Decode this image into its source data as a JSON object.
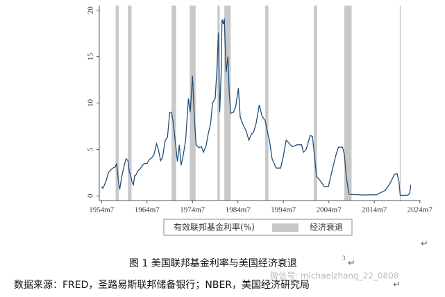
{
  "chart_data": {
    "type": "line",
    "x": [
      1954.5,
      1954.8,
      1955.5,
      1956.0,
      1956.5,
      1957.0,
      1957.5,
      1957.8,
      1958.0,
      1958.3,
      1958.5,
      1958.9,
      1959.5,
      1959.9,
      1960.3,
      1960.6,
      1961.0,
      1961.2,
      1961.5,
      1961.8,
      1962.0,
      1962.5,
      1963.0,
      1963.5,
      1964.0,
      1964.5,
      1965.0,
      1965.5,
      1966.0,
      1966.6,
      1967.0,
      1967.5,
      1967.9,
      1968.5,
      1969.0,
      1969.5,
      1969.9,
      1970.3,
      1970.9,
      1971.2,
      1971.6,
      1972.0,
      1972.5,
      1973.0,
      1973.6,
      1974.0,
      1974.5,
      1974.9,
      1975.3,
      1975.9,
      1976.5,
      1976.9,
      1977.5,
      1977.9,
      1978.5,
      1978.9,
      1979.5,
      1979.9,
      1980.2,
      1980.5,
      1980.8,
      1981.0,
      1981.3,
      1981.5,
      1981.9,
      1982.3,
      1982.6,
      1982.9,
      1983.5,
      1984.0,
      1984.6,
      1985.0,
      1985.5,
      1986.3,
      1986.9,
      1987.5,
      1987.9,
      1988.5,
      1989.2,
      1989.8,
      1990.5,
      1991.0,
      1991.5,
      1992.0,
      1992.9,
      1993.9,
      1994.5,
      1995.1,
      1995.9,
      1996.5,
      1997.5,
      1998.5,
      1998.9,
      1999.5,
      2000.4,
      2000.9,
      2001.3,
      2001.8,
      2002.5,
      2003.5,
      2004.4,
      2005.0,
      2006.0,
      2006.6,
      2007.5,
      2007.9,
      2008.3,
      2008.9,
      2009.5,
      2012.0,
      2015.0,
      2015.9,
      2016.9,
      2017.9,
      2018.9,
      2019.5,
      2019.9,
      2020.2,
      2021.9,
      2022.3,
      2022.5
    ],
    "series": [
      {
        "name": "有效联邦基金利率(%)",
        "color": "#1f4e79",
        "values": [
          1.0,
          0.8,
          1.6,
          2.5,
          2.8,
          3.0,
          3.1,
          3.5,
          2.7,
          1.2,
          0.7,
          2.0,
          3.3,
          4.0,
          3.8,
          2.6,
          2.0,
          1.5,
          1.2,
          2.2,
          2.2,
          2.7,
          2.9,
          3.3,
          3.5,
          3.5,
          3.9,
          4.1,
          4.4,
          5.6,
          5.0,
          3.8,
          4.1,
          6.0,
          6.3,
          9.0,
          9.0,
          7.8,
          5.0,
          3.7,
          5.5,
          3.3,
          4.5,
          6.0,
          10.5,
          9.0,
          12.9,
          8.5,
          5.5,
          5.2,
          5.3,
          4.7,
          5.4,
          6.5,
          7.8,
          10.0,
          10.5,
          13.8,
          17.6,
          9.0,
          13.0,
          19.0,
          18.5,
          19.1,
          13.3,
          15.0,
          11.0,
          8.9,
          9.0,
          9.6,
          11.6,
          8.5,
          7.8,
          7.0,
          6.0,
          6.7,
          6.8,
          7.8,
          9.8,
          8.6,
          8.1,
          6.9,
          5.8,
          4.0,
          3.0,
          3.0,
          4.3,
          6.0,
          5.6,
          5.3,
          5.5,
          5.5,
          4.7,
          5.0,
          6.5,
          6.4,
          4.5,
          2.1,
          1.7,
          1.0,
          1.0,
          2.3,
          4.3,
          5.25,
          5.25,
          4.5,
          2.2,
          0.2,
          0.15,
          0.1,
          0.12,
          0.35,
          0.6,
          1.3,
          2.3,
          2.4,
          1.6,
          0.05,
          0.08,
          0.3,
          1.2
        ]
      }
    ],
    "recessions": {
      "name": "经济衰退",
      "color": "#c8c8c8",
      "periods": [
        [
          1957.6,
          1958.3
        ],
        [
          1960.3,
          1961.1
        ],
        [
          1969.9,
          1970.9
        ],
        [
          1973.9,
          1975.2
        ],
        [
          1980.0,
          1980.5
        ],
        [
          1981.5,
          1982.9
        ],
        [
          1990.5,
          1991.2
        ],
        [
          2001.2,
          2001.9
        ],
        [
          2007.9,
          2009.5
        ],
        [
          2020.1,
          2020.3
        ]
      ]
    },
    "xlim": [
      1954.0,
      2024.7
    ],
    "xticks": [
      {
        "value": 1954.5,
        "label": "1954m7"
      },
      {
        "value": 1964.5,
        "label": "1964m7"
      },
      {
        "value": 1974.5,
        "label": "1974m7"
      },
      {
        "value": 1984.5,
        "label": "1984m7"
      },
      {
        "value": 1994.5,
        "label": "1994m7"
      },
      {
        "value": 2004.5,
        "label": "2004m7"
      },
      {
        "value": 2014.5,
        "label": "2014m7"
      },
      {
        "value": 2024.5,
        "label": "2024m7"
      }
    ],
    "ylim": [
      -0.5,
      20.5
    ],
    "yticks": [
      0,
      5,
      10,
      15,
      20
    ],
    "caption": "图 1  美国联邦基金利率与美国经济衰退",
    "caption_note": "3",
    "paragraph_mark": "↵",
    "source": "数据来源：FRED，圣路易斯联邦储备银行；NBER，美国经济研究局",
    "watermark": "微信号: michaelzhang_22_0808"
  }
}
